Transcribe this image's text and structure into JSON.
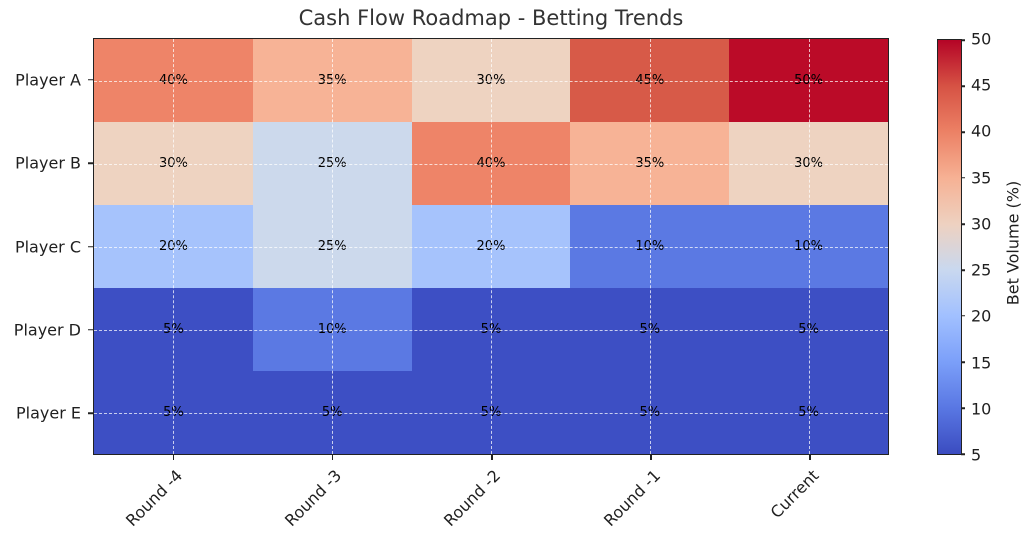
{
  "chart_data": {
    "type": "heatmap",
    "title": "Cash Flow Roadmap - Betting Trends",
    "rows": [
      "Player A",
      "Player B",
      "Player C",
      "Player D",
      "Player E"
    ],
    "columns": [
      "Round -4",
      "Round -3",
      "Round -2",
      "Round -1",
      "Current"
    ],
    "values": [
      [
        40,
        35,
        30,
        45,
        50
      ],
      [
        30,
        25,
        40,
        35,
        30
      ],
      [
        20,
        25,
        20,
        10,
        10
      ],
      [
        5,
        10,
        5,
        5,
        5
      ],
      [
        5,
        5,
        5,
        5,
        5
      ]
    ],
    "cell_label_format": "{v}%",
    "grid": "dashed",
    "colorbar": {
      "label": "Bet Volume (%)",
      "min": 5,
      "max": 50,
      "ticks": [
        5,
        10,
        15,
        20,
        25,
        30,
        35,
        40,
        45,
        50
      ],
      "colormap": "coolwarm",
      "gradient_stops": [
        {
          "value": 5,
          "color": "#3b4cc0"
        },
        {
          "value": 10,
          "color": "#5977e3"
        },
        {
          "value": 15,
          "color": "#7b9ff9"
        },
        {
          "value": 20,
          "color": "#a1c0ff"
        },
        {
          "value": 25,
          "color": "#c9d8ef"
        },
        {
          "value": 30,
          "color": "#eed1c0"
        },
        {
          "value": 35,
          "color": "#f6b194"
        },
        {
          "value": 40,
          "color": "#ec8165"
        },
        {
          "value": 45,
          "color": "#d65244"
        },
        {
          "value": 50,
          "color": "#b40426"
        }
      ]
    },
    "value_colors": {
      "5": "#3d4fc4",
      "10": "#5b79e3",
      "15": "#7d9ef7",
      "20": "#a6c3fc",
      "25": "#ccd9ec",
      "30": "#eed3c1",
      "35": "#f7b396",
      "40": "#ee8468",
      "45": "#d75a48",
      "50": "#bb0b28"
    }
  }
}
